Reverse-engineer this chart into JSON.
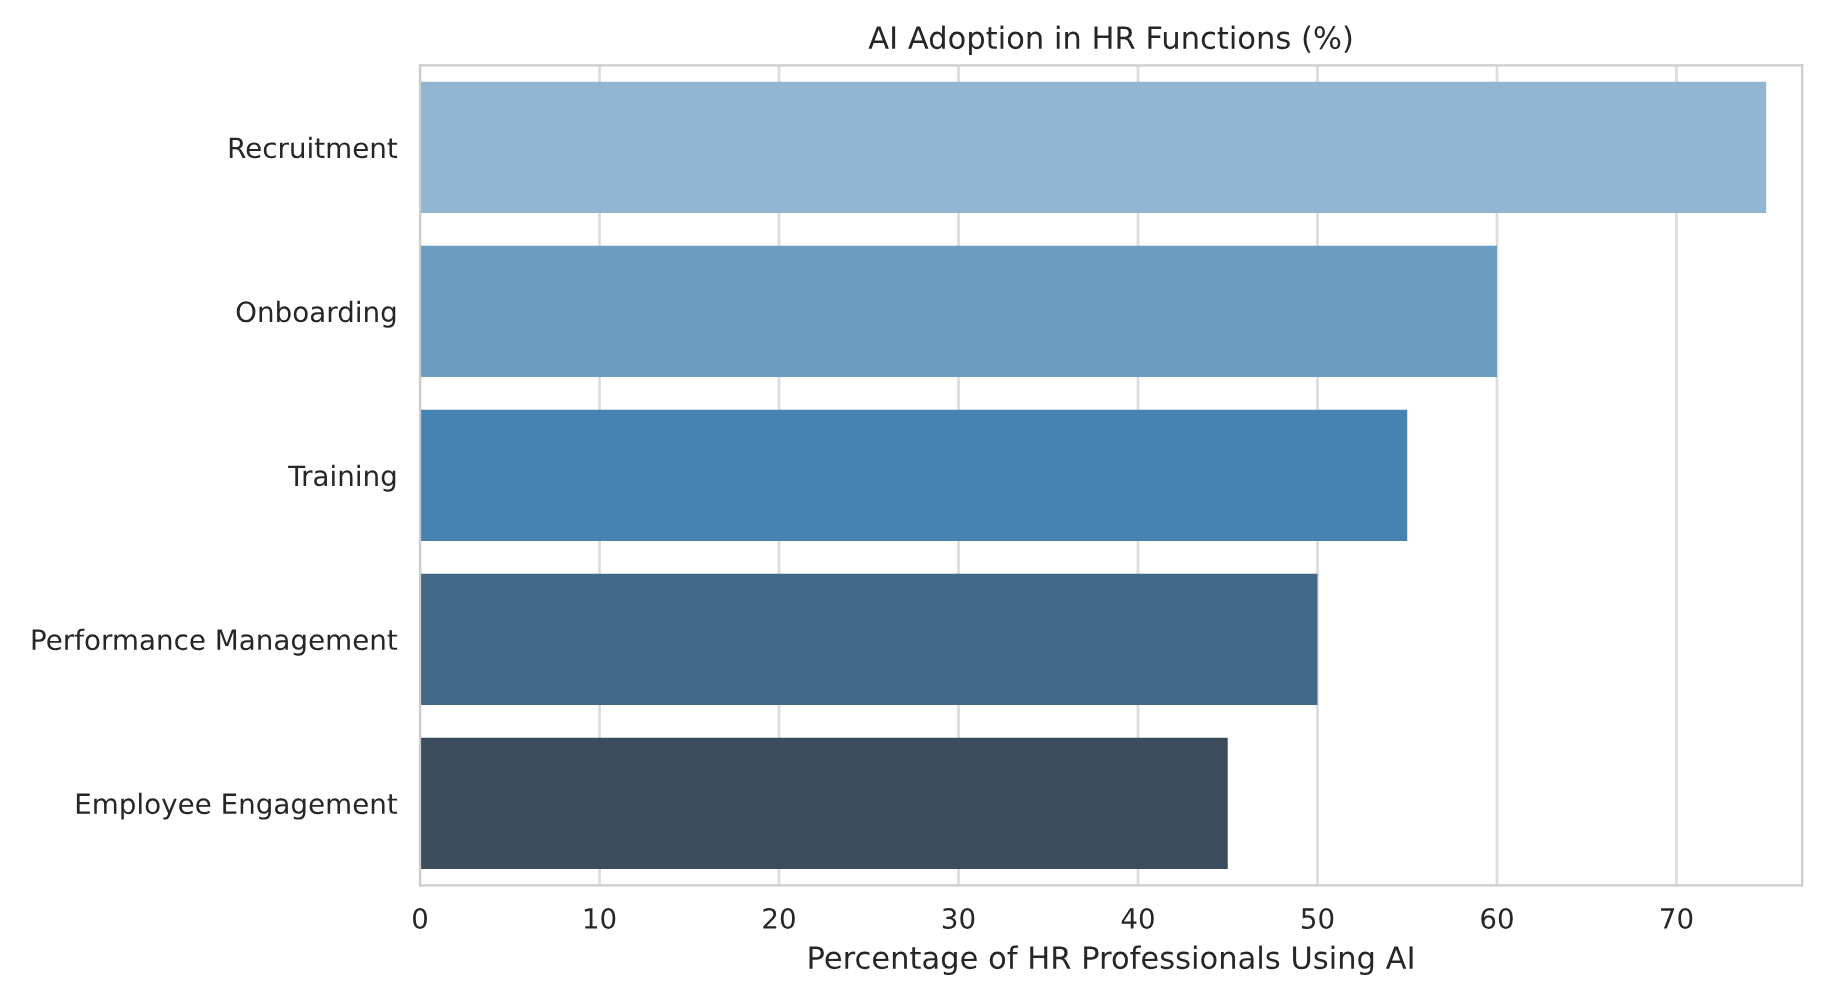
{
  "chart_data": {
    "type": "bar",
    "orientation": "horizontal",
    "title": "AI Adoption in HR Functions (%)",
    "xlabel": "Percentage of HR Professionals Using AI",
    "categories": [
      "Recruitment",
      "Onboarding",
      "Training",
      "Performance Management",
      "Employee Engagement"
    ],
    "values": [
      75,
      60,
      55,
      50,
      45
    ],
    "colors": [
      "#92b6d1",
      "#6b9dc0",
      "#4783b0",
      "#426a88",
      "#3b4d5c"
    ],
    "xlim": [
      0,
      77
    ],
    "xticks": [
      0,
      10,
      20,
      30,
      40,
      50,
      60,
      70
    ],
    "grid": "x"
  }
}
